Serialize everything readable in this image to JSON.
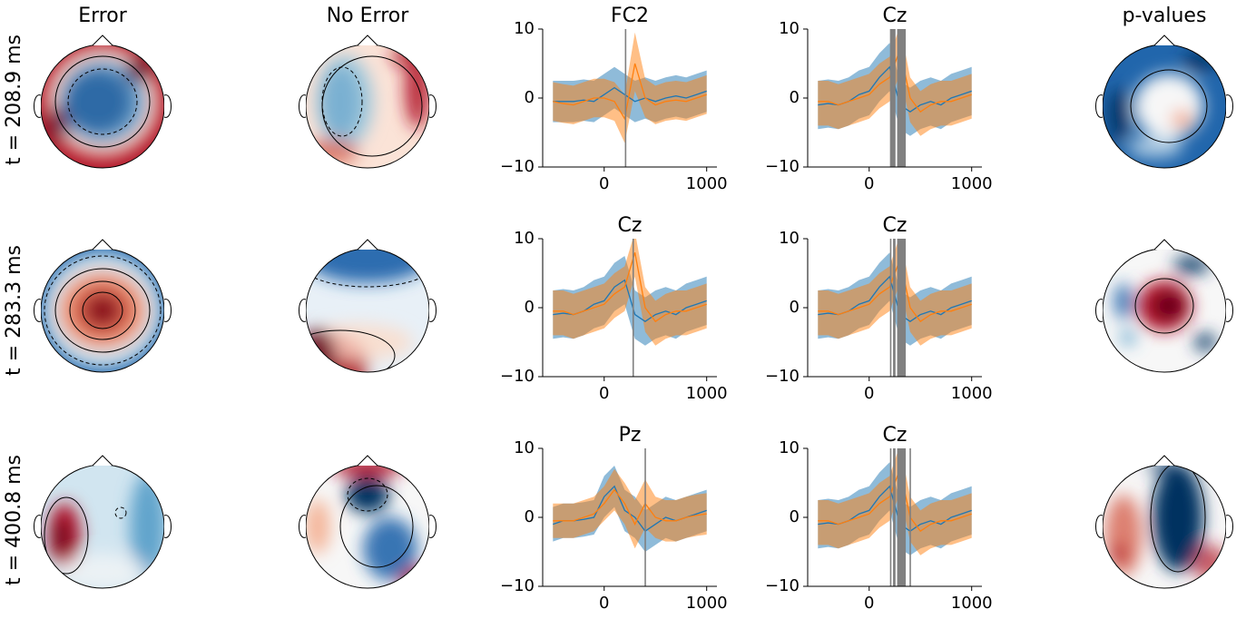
{
  "figure": {
    "column_titles": [
      "Error",
      "No Error",
      "p-values"
    ],
    "row_labels": [
      "t = 208.9 ms",
      "t = 283.3 ms",
      "t = 400.8 ms"
    ]
  },
  "chart_data": [
    {
      "type": "line",
      "title": "FC2",
      "x": [
        -500,
        -400,
        -300,
        -200,
        -100,
        0,
        100,
        200,
        300,
        400,
        500,
        600,
        700,
        800,
        900,
        1000
      ],
      "xlim": [
        -600,
        1100
      ],
      "xticks": [
        0,
        1000
      ],
      "ylim": [
        -10,
        10
      ],
      "yticks": [
        {
          "value": -10,
          "label": "−10"
        },
        0,
        10
      ],
      "series": [
        {
          "color": "#1f77b4",
          "values": [
            -0.5,
            -0.5,
            -0.5,
            -0.3,
            -0.5,
            0.5,
            1.5,
            0.5,
            -0.5,
            0,
            -0.5,
            0,
            0.3,
            0,
            0.5,
            1
          ],
          "lower": [
            -3.5,
            -3.5,
            -3.5,
            -3.3,
            -3.5,
            -2.5,
            -1.5,
            -2.5,
            -3.5,
            -3,
            -3.5,
            -3,
            -2.7,
            -3,
            -2.5,
            -2
          ],
          "upper": [
            2.5,
            2.5,
            2.5,
            2.7,
            2.5,
            3.5,
            4.5,
            3.5,
            2.5,
            3,
            2.5,
            3,
            3.3,
            3,
            3.5,
            4
          ]
        },
        {
          "color": "#ff7f0e",
          "values": [
            -0.5,
            -0.8,
            -1,
            -0.5,
            0,
            0,
            -0.5,
            -3,
            5,
            0,
            -1,
            -0.5,
            -0.3,
            -0.5,
            0,
            0.5
          ],
          "lower": [
            -3.3,
            -3.6,
            -3.8,
            -3.3,
            -2.8,
            -2.8,
            -3.3,
            -6.5,
            1,
            -2.8,
            -3.8,
            -3.3,
            -3.1,
            -3.3,
            -2.8,
            -2.3
          ],
          "upper": [
            2.3,
            2,
            1.8,
            2.3,
            2.8,
            2.8,
            2.3,
            0.5,
            9.5,
            2.8,
            1.8,
            2.3,
            2.5,
            2.3,
            2.8,
            3.3
          ]
        }
      ],
      "vlines": [
        208.9
      ],
      "vline_color": "#808080"
    },
    {
      "type": "line",
      "title": "Cz",
      "x": [
        -500,
        -400,
        -300,
        -200,
        -100,
        0,
        100,
        200,
        300,
        400,
        500,
        600,
        700,
        800,
        900,
        1000
      ],
      "xlim": [
        -600,
        1100
      ],
      "xticks": [
        0,
        1000
      ],
      "ylim": [
        -10,
        10
      ],
      "yticks": [
        {
          "value": -10,
          "label": "−10"
        },
        0,
        10
      ],
      "series": [
        {
          "color": "#1f77b4",
          "values": [
            -1,
            -0.8,
            -1,
            -0.5,
            0.5,
            1,
            3,
            4.5,
            -1,
            -2,
            -1,
            -0.5,
            -1,
            0,
            0.5,
            1
          ],
          "lower": [
            -4.5,
            -4.3,
            -4.5,
            -4,
            -3,
            -2.5,
            -0.5,
            1,
            -4.5,
            -5.5,
            -4.5,
            -4,
            -4.5,
            -3.5,
            -3,
            -2.5
          ],
          "upper": [
            2.5,
            2.7,
            2.5,
            3,
            4,
            4.5,
            6.5,
            8,
            2.5,
            1.5,
            2.5,
            3,
            2.5,
            3.5,
            4,
            4.5
          ]
        },
        {
          "color": "#ff7f0e",
          "values": [
            -0.5,
            -0.5,
            -1,
            -0.5,
            0,
            0.5,
            2,
            3,
            7,
            0,
            -2,
            -1,
            -0.5,
            -0.5,
            0,
            0.5
          ],
          "lower": [
            -4,
            -4,
            -4.5,
            -4,
            -3.5,
            -3,
            -1.5,
            -0.5,
            3.5,
            -3.5,
            -5.5,
            -4.5,
            -4,
            -4,
            -3.5,
            -3
          ],
          "upper": [
            2.5,
            2.5,
            2,
            2.5,
            3,
            3.5,
            5,
            6,
            10.5,
            3,
            1,
            2,
            2.5,
            2.5,
            3,
            3.5
          ]
        }
      ],
      "vlines": [
        210,
        220,
        230,
        240,
        250,
        280,
        290,
        300,
        310,
        320,
        330,
        340,
        350
      ],
      "vline_color": "#808080"
    },
    {
      "type": "line",
      "title": "Cz",
      "x": [
        -500,
        -400,
        -300,
        -200,
        -100,
        0,
        100,
        200,
        300,
        400,
        500,
        600,
        700,
        800,
        900,
        1000
      ],
      "xlim": [
        -600,
        1100
      ],
      "xticks": [
        0,
        1000
      ],
      "ylim": [
        -10,
        10
      ],
      "yticks": [
        {
          "value": -10,
          "label": "−10"
        },
        0,
        10
      ],
      "series": [
        {
          "color": "#1f77b4",
          "values": [
            -1,
            -0.8,
            -1,
            -0.5,
            0.5,
            1,
            3,
            4,
            -1,
            -2,
            -1,
            -0.5,
            -1,
            0,
            0.5,
            1
          ],
          "lower": [
            -4.5,
            -4.3,
            -4.5,
            -4,
            -3,
            -2.5,
            -0.5,
            0.5,
            -4.5,
            -5.5,
            -4.5,
            -4,
            -4.5,
            -3.5,
            -3,
            -2.5
          ],
          "upper": [
            2.5,
            2.7,
            2.5,
            3,
            4,
            4.5,
            6.5,
            7.5,
            2.5,
            1.5,
            2.5,
            3,
            2.5,
            3.5,
            4,
            4.5
          ]
        },
        {
          "color": "#ff7f0e",
          "values": [
            -0.5,
            -0.5,
            -1,
            -0.5,
            0,
            0.5,
            2,
            3,
            8,
            0,
            -2,
            -1,
            -0.5,
            -0.5,
            0,
            0.5
          ],
          "lower": [
            -4,
            -4,
            -4.5,
            -4,
            -3.5,
            -3,
            -1.5,
            -0.5,
            4.5,
            -3.5,
            -5.5,
            -4.5,
            -4,
            -4,
            -3.5,
            -3
          ],
          "upper": [
            2.5,
            2.5,
            2,
            2.5,
            3,
            3.5,
            5,
            6,
            11,
            3,
            1,
            2,
            2.5,
            2.5,
            3,
            3.5
          ]
        }
      ],
      "vlines": [
        283.3
      ],
      "vline_color": "#808080"
    },
    {
      "type": "line",
      "title": "Cz",
      "x": [
        -500,
        -400,
        -300,
        -200,
        -100,
        0,
        100,
        200,
        300,
        400,
        500,
        600,
        700,
        800,
        900,
        1000
      ],
      "xlim": [
        -600,
        1100
      ],
      "xticks": [
        0,
        1000
      ],
      "ylim": [
        -10,
        10
      ],
      "yticks": [
        {
          "value": -10,
          "label": "−10"
        },
        0,
        10
      ],
      "series": [
        {
          "color": "#1f77b4",
          "values": [
            -1,
            -0.8,
            -1,
            -0.5,
            0.5,
            1,
            3,
            4.5,
            -1,
            -2,
            -1,
            -0.5,
            -1,
            0,
            0.5,
            1
          ],
          "lower": [
            -4.5,
            -4.3,
            -4.5,
            -4,
            -3,
            -2.5,
            -0.5,
            1,
            -4.5,
            -5.5,
            -4.5,
            -4,
            -4.5,
            -3.5,
            -3,
            -2.5
          ],
          "upper": [
            2.5,
            2.7,
            2.5,
            3,
            4,
            4.5,
            6.5,
            8,
            2.5,
            1.5,
            2.5,
            3,
            2.5,
            3.5,
            4,
            4.5
          ]
        },
        {
          "color": "#ff7f0e",
          "values": [
            -0.5,
            -0.5,
            -1,
            -0.5,
            0,
            0.5,
            2,
            3,
            7,
            0,
            -2,
            -1,
            -0.5,
            -0.5,
            0,
            0.5
          ],
          "lower": [
            -4,
            -4,
            -4.5,
            -4,
            -3.5,
            -3,
            -1.5,
            -0.5,
            3.5,
            -3.5,
            -5.5,
            -4.5,
            -4,
            -4,
            -3.5,
            -3
          ],
          "upper": [
            2.5,
            2.5,
            2,
            2.5,
            3,
            3.5,
            5,
            6,
            10.5,
            3,
            1,
            2,
            2.5,
            2.5,
            3,
            3.5
          ]
        }
      ],
      "vlines": [
        210,
        240,
        250,
        280,
        283.3,
        290,
        300,
        310,
        320,
        330,
        340,
        350
      ],
      "vline_color": "#808080"
    },
    {
      "type": "line",
      "title": "Pz",
      "x": [
        -500,
        -400,
        -300,
        -200,
        -100,
        0,
        100,
        200,
        300,
        400,
        500,
        600,
        700,
        800,
        900,
        1000
      ],
      "xlim": [
        -600,
        1100
      ],
      "xticks": [
        0,
        1000
      ],
      "ylim": [
        -10,
        10
      ],
      "yticks": [
        {
          "value": -10,
          "label": "−10"
        },
        0,
        10
      ],
      "series": [
        {
          "color": "#1f77b4",
          "values": [
            -1,
            -0.5,
            -0.5,
            -0.3,
            0,
            3,
            4.5,
            1,
            0,
            -2,
            -1,
            0,
            -0.5,
            0,
            0.5,
            1
          ],
          "lower": [
            -3.5,
            -3,
            -3,
            -2.8,
            -2.5,
            0,
            1.5,
            -2,
            -3,
            -5,
            -4,
            -3,
            -3.5,
            -3,
            -2.5,
            -2
          ],
          "upper": [
            1.5,
            2,
            2,
            2.2,
            2.5,
            6,
            7.5,
            4,
            3,
            1,
            2,
            3,
            2.5,
            3,
            3.5,
            4
          ]
        },
        {
          "color": "#ff7f0e",
          "values": [
            -0.5,
            -0.5,
            -0.5,
            0,
            0.5,
            2,
            4,
            2,
            -1,
            2,
            0,
            -0.5,
            -0.5,
            0,
            0.3,
            0.5
          ],
          "lower": [
            -3,
            -3,
            -3,
            -2.5,
            -2,
            -0.5,
            1,
            -1,
            -4.5,
            -1.5,
            -3,
            -3.5,
            -3.5,
            -3,
            -2.7,
            -2.5
          ],
          "upper": [
            2,
            2,
            2,
            2.5,
            3,
            4.5,
            7,
            5,
            2.5,
            5.5,
            3,
            2.5,
            2.5,
            3,
            3.3,
            3.5
          ]
        }
      ],
      "vlines": [
        400.8
      ],
      "vline_color": "#808080"
    },
    {
      "type": "line",
      "title": "Cz",
      "x": [
        -500,
        -400,
        -300,
        -200,
        -100,
        0,
        100,
        200,
        300,
        400,
        500,
        600,
        700,
        800,
        900,
        1000
      ],
      "xlim": [
        -600,
        1100
      ],
      "xticks": [
        0,
        1000
      ],
      "ylim": [
        -10,
        10
      ],
      "yticks": [
        {
          "value": -10,
          "label": "−10"
        },
        0,
        10
      ],
      "series": [
        {
          "color": "#1f77b4",
          "values": [
            -1,
            -0.8,
            -1,
            -0.5,
            0.5,
            1,
            3,
            4.5,
            -1,
            -2,
            -1,
            -0.5,
            -1,
            0,
            0.5,
            1
          ],
          "lower": [
            -4.5,
            -4.3,
            -4.5,
            -4,
            -3,
            -2.5,
            -0.5,
            1,
            -4.5,
            -5.5,
            -4.5,
            -4,
            -4.5,
            -3.5,
            -3,
            -2.5
          ],
          "upper": [
            2.5,
            2.7,
            2.5,
            3,
            4,
            4.5,
            6.5,
            8,
            2.5,
            1.5,
            2.5,
            3,
            2.5,
            3.5,
            4,
            4.5
          ]
        },
        {
          "color": "#ff7f0e",
          "values": [
            -0.5,
            -0.5,
            -1,
            -0.5,
            0,
            0.5,
            2,
            3,
            7,
            0,
            -2,
            -1,
            -0.5,
            -0.5,
            0,
            0.5
          ],
          "lower": [
            -4,
            -4,
            -4.5,
            -4,
            -3.5,
            -3,
            -1.5,
            -0.5,
            3.5,
            -3.5,
            -5.5,
            -4.5,
            -4,
            -4,
            -3.5,
            -3
          ],
          "upper": [
            2.5,
            2.5,
            2,
            2.5,
            3,
            3.5,
            5,
            6,
            10.5,
            3,
            1,
            2,
            2.5,
            2.5,
            3,
            3.5
          ]
        }
      ],
      "vlines": [
        210,
        240,
        250,
        280,
        290,
        300,
        310,
        320,
        330,
        340,
        350,
        400.8
      ],
      "vline_color": "#808080"
    }
  ]
}
